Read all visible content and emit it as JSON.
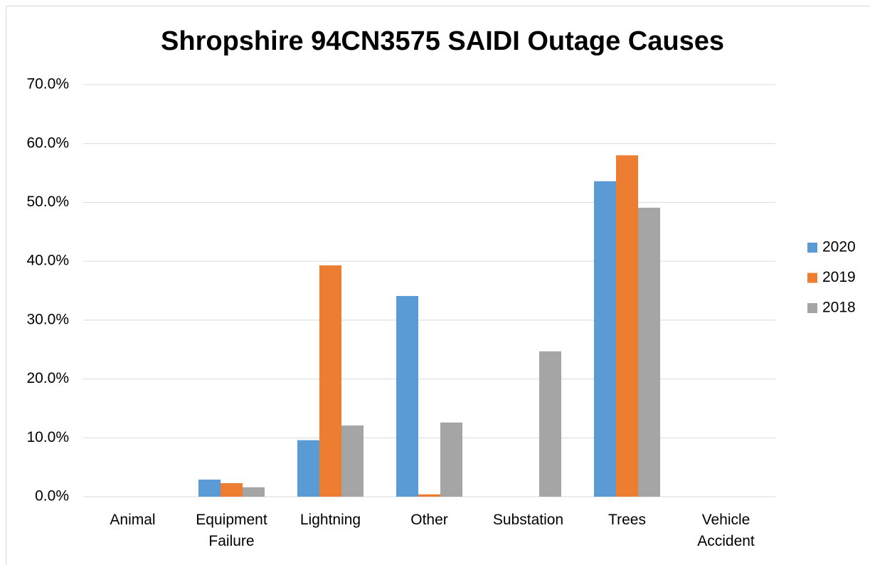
{
  "chart_data": {
    "type": "bar",
    "title": "Shropshire 94CN3575 SAIDI Outage Causes",
    "categories": [
      "Animal",
      "Equipment Failure",
      "Lightning",
      "Other",
      "Substation",
      "Trees",
      "Vehicle Accident"
    ],
    "series": [
      {
        "name": "2020",
        "color": "#5b9bd5",
        "values": [
          0,
          2.9,
          9.6,
          34.1,
          0,
          53.6,
          0
        ]
      },
      {
        "name": "2019",
        "color": "#ed7d31",
        "values": [
          0,
          2.3,
          39.3,
          0.4,
          0,
          58.0,
          0
        ]
      },
      {
        "name": "2018",
        "color": "#a5a5a5",
        "values": [
          0,
          1.6,
          12.1,
          12.6,
          24.7,
          49.1,
          0
        ]
      }
    ],
    "ylim": [
      0,
      70
    ],
    "yticks": [
      {
        "value": 0,
        "label": "0.0%"
      },
      {
        "value": 10,
        "label": "10.0%"
      },
      {
        "value": 20,
        "label": "20.0%"
      },
      {
        "value": 30,
        "label": "30.0%"
      },
      {
        "value": 40,
        "label": "40.0%"
      },
      {
        "value": 50,
        "label": "50.0%"
      },
      {
        "value": 60,
        "label": "60.0%"
      },
      {
        "value": 70,
        "label": "70.0%"
      }
    ],
    "grid": true,
    "legend": "right"
  }
}
